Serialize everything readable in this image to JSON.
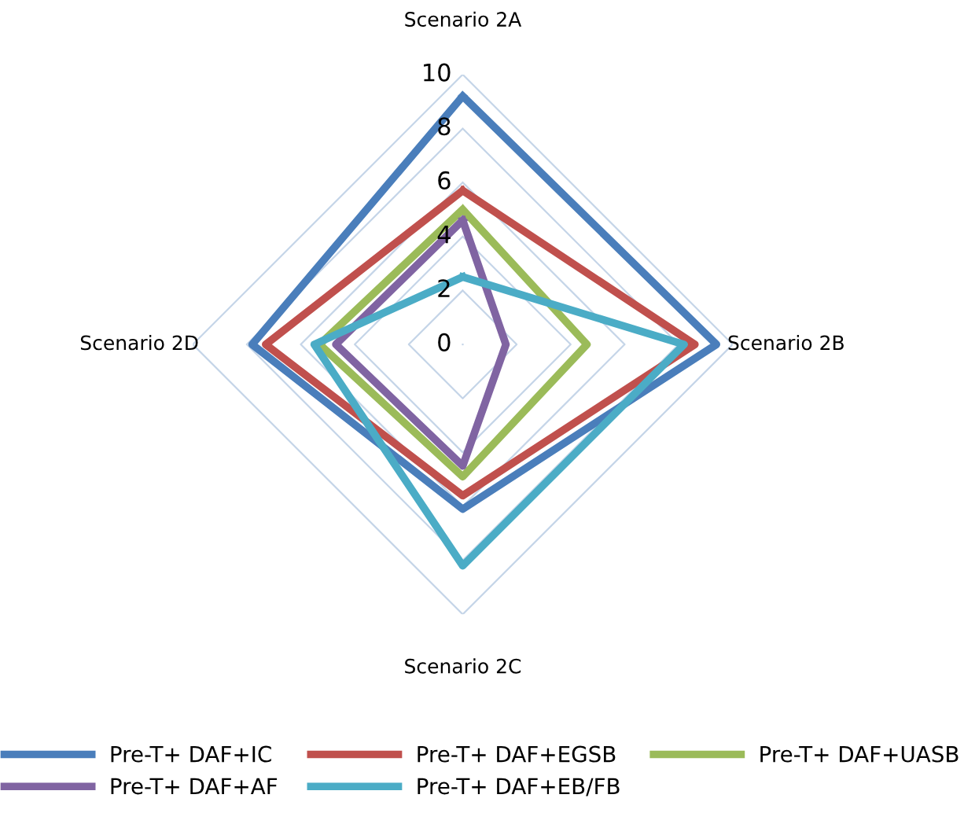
{
  "chart_data": {
    "type": "radar",
    "categories": [
      "Scenario 2A",
      "Scenario 2B",
      "Scenario 2C",
      "Scenario 2D"
    ],
    "ylim": [
      0,
      10
    ],
    "yticks": [
      0,
      2,
      4,
      6,
      8,
      10
    ],
    "grid": true,
    "legend": "bottom",
    "series": [
      {
        "name": "Pre-T+ DAF+IC",
        "color": "#4a7ebb",
        "values": [
          9.2,
          9.4,
          6.1,
          7.8
        ]
      },
      {
        "name": "Pre-T+ DAF+EGSB",
        "color": "#c0504d",
        "values": [
          5.7,
          8.6,
          5.6,
          7.3
        ]
      },
      {
        "name": "Pre-T+ DAF+UASB",
        "color": "#9bbb59",
        "values": [
          5.0,
          4.6,
          4.9,
          5.3
        ]
      },
      {
        "name": "Pre-T+ DAF+AF",
        "color": "#8064a2",
        "values": [
          4.6,
          1.6,
          4.5,
          4.7
        ]
      },
      {
        "name": "Pre-T+ DAF+EB/FB",
        "color": "#4bacc6",
        "values": [
          2.5,
          8.2,
          8.2,
          5.5
        ]
      }
    ]
  }
}
